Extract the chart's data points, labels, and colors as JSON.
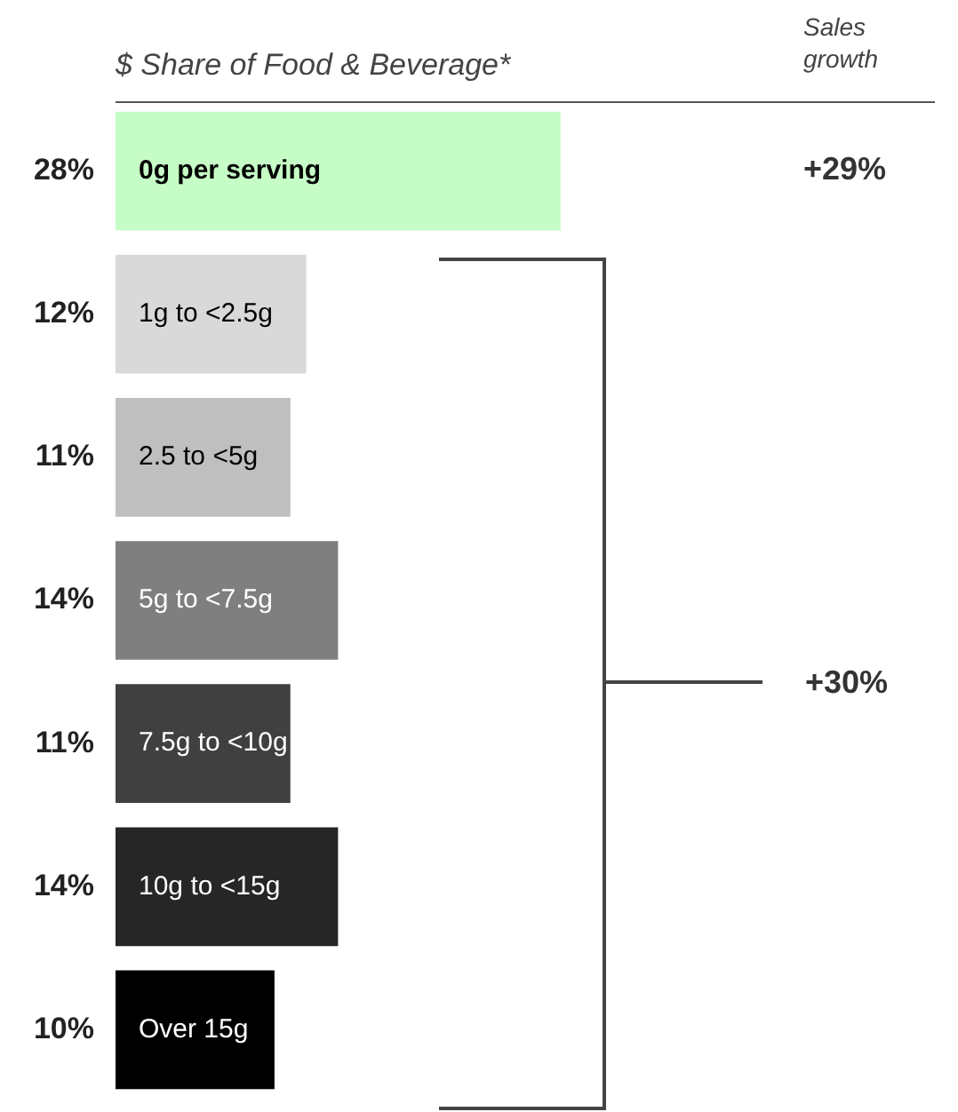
{
  "chart_data": {
    "type": "bar",
    "orientation": "horizontal",
    "title": "$ Share of Food & Beverage*",
    "categories": [
      "0g per serving",
      "1g to <2.5g",
      "2.5 to <5g",
      "5g to <7.5g",
      "7.5g to <10g",
      "10g to <15g",
      "Over 15g"
    ],
    "values": [
      28,
      12,
      11,
      14,
      11,
      14,
      10
    ],
    "colors": [
      "#c6fcc6",
      "#d9d9d9",
      "#bfbfbf",
      "#7f7f7f",
      "#404040",
      "#262626",
      "#000000"
    ],
    "value_labels": [
      "28%",
      "12%",
      "11%",
      "14%",
      "11%",
      "14%",
      "10%"
    ],
    "xlim": [
      0,
      52
    ],
    "tick_labels": false,
    "legend": false,
    "annotations": [
      "Sales growth",
      "+29%",
      "+30%"
    ]
  }
}
